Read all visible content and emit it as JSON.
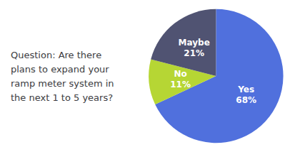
{
  "chart_data": {
    "type": "pie",
    "title": "Question: Are there\nplans to expand your\nramp meter system in\nthe next 1 to 5 years?",
    "categories": [
      "Yes",
      "No",
      "Maybe"
    ],
    "values": [
      68,
      11,
      21
    ],
    "value_labels": [
      "68%",
      "11%",
      "21%"
    ],
    "data_labels": true
  }
}
